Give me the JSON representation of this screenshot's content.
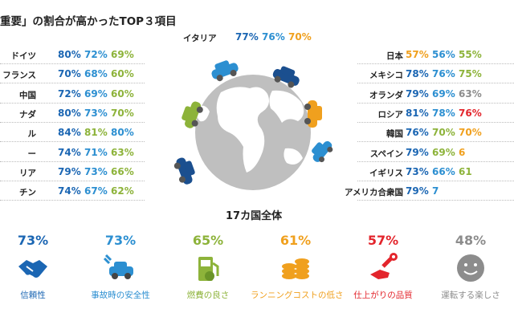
{
  "title": "重要」の割合が高かったTOP３項目",
  "overall_label": "17カ国全体",
  "colors": {
    "blue": "#1b66b3",
    "lightblue": "#2c8fd1",
    "green": "#8db33a",
    "orange": "#f0a01e",
    "red": "#e3252c",
    "gray": "#8c8c8c"
  },
  "icons": [
    "handshake-icon",
    "car-crash-icon",
    "fuel-pump-icon",
    "coins-icon",
    "wrench-hand-icon",
    "smiley-icon"
  ],
  "chart_data": {
    "type": "table",
    "series_colors": [
      "#1b66b3",
      "#2c8fd1",
      "#8db33a",
      "#f0a01e",
      "#e3252c",
      "#8c8c8c"
    ],
    "countries_top": [
      {
        "name": "イタリア",
        "values": [
          {
            "v": "77%",
            "c": 0
          },
          {
            "v": "76%",
            "c": 1
          },
          {
            "v": "70%",
            "c": 3
          }
        ]
      }
    ],
    "countries_left": [
      {
        "name": "ドイツ",
        "values": [
          {
            "v": "80%",
            "c": 0
          },
          {
            "v": "72%",
            "c": 1
          },
          {
            "v": "69%",
            "c": 2
          }
        ]
      },
      {
        "name": "フランス",
        "values": [
          {
            "v": "70%",
            "c": 0
          },
          {
            "v": "68%",
            "c": 1
          },
          {
            "v": "60%",
            "c": 2
          }
        ]
      },
      {
        "name": "中国",
        "values": [
          {
            "v": "72%",
            "c": 0
          },
          {
            "v": "69%",
            "c": 1
          },
          {
            "v": "60%",
            "c": 2
          }
        ]
      },
      {
        "name": "ナダ",
        "values": [
          {
            "v": "80%",
            "c": 0
          },
          {
            "v": "73%",
            "c": 1
          },
          {
            "v": "70%",
            "c": 2
          }
        ]
      },
      {
        "name": "ル",
        "values": [
          {
            "v": "84%",
            "c": 0
          },
          {
            "v": "81%",
            "c": 2
          },
          {
            "v": "80%",
            "c": 1
          }
        ]
      },
      {
        "name": "ー",
        "values": [
          {
            "v": "74%",
            "c": 0
          },
          {
            "v": "71%",
            "c": 1
          },
          {
            "v": "63%",
            "c": 2
          }
        ]
      },
      {
        "name": "リア",
        "values": [
          {
            "v": "79%",
            "c": 0
          },
          {
            "v": "73%",
            "c": 1
          },
          {
            "v": "66%",
            "c": 2
          }
        ]
      },
      {
        "name": "チン",
        "values": [
          {
            "v": "74%",
            "c": 0
          },
          {
            "v": "67%",
            "c": 1
          },
          {
            "v": "62%",
            "c": 2
          }
        ]
      }
    ],
    "countries_right": [
      {
        "name": "日本",
        "values": [
          {
            "v": "57%",
            "c": 3
          },
          {
            "v": "56%",
            "c": 1
          },
          {
            "v": "55%",
            "c": 2
          }
        ]
      },
      {
        "name": "メキシコ",
        "values": [
          {
            "v": "78%",
            "c": 0
          },
          {
            "v": "76%",
            "c": 1
          },
          {
            "v": "75%",
            "c": 2
          }
        ]
      },
      {
        "name": "オランダ",
        "values": [
          {
            "v": "79%",
            "c": 0
          },
          {
            "v": "69%",
            "c": 1
          },
          {
            "v": "63%",
            "c": 5
          }
        ]
      },
      {
        "name": "ロシア",
        "values": [
          {
            "v": "81%",
            "c": 0
          },
          {
            "v": "78%",
            "c": 1
          },
          {
            "v": "76%",
            "c": 4
          }
        ]
      },
      {
        "name": "韓国",
        "values": [
          {
            "v": "76%",
            "c": 0
          },
          {
            "v": "70%",
            "c": 2
          },
          {
            "v": "70%",
            "c": 3
          }
        ]
      },
      {
        "name": "スペイン",
        "values": [
          {
            "v": "79%",
            "c": 0
          },
          {
            "v": "69%",
            "c": 2
          },
          {
            "v": "6",
            "c": 3
          }
        ]
      },
      {
        "name": "イギリス",
        "values": [
          {
            "v": "73%",
            "c": 0
          },
          {
            "v": "66%",
            "c": 1
          },
          {
            "v": "61",
            "c": 2
          }
        ]
      },
      {
        "name": "アメリカ合衆国",
        "values": [
          {
            "v": "79%",
            "c": 0
          },
          {
            "v": "7",
            "c": 1
          }
        ]
      }
    ],
    "overall": [
      {
        "pct": "73%",
        "label": "信頼性",
        "color": "#1b66b3",
        "icon": "handshake-icon"
      },
      {
        "pct": "73%",
        "label": "事故時の安全性",
        "color": "#2c8fd1",
        "icon": "car-crash-icon"
      },
      {
        "pct": "65%",
        "label": "燃費の良さ",
        "color": "#8db33a",
        "icon": "fuel-pump-icon"
      },
      {
        "pct": "61%",
        "label": "ランニングコストの低さ",
        "color": "#f0a01e",
        "icon": "coins-icon"
      },
      {
        "pct": "57%",
        "label": "仕上がりの品質",
        "color": "#e3252c",
        "icon": "wrench-hand-icon"
      },
      {
        "pct": "48%",
        "label": "運転する楽しさ",
        "color": "#8c8c8c",
        "icon": "smiley-icon"
      }
    ]
  }
}
